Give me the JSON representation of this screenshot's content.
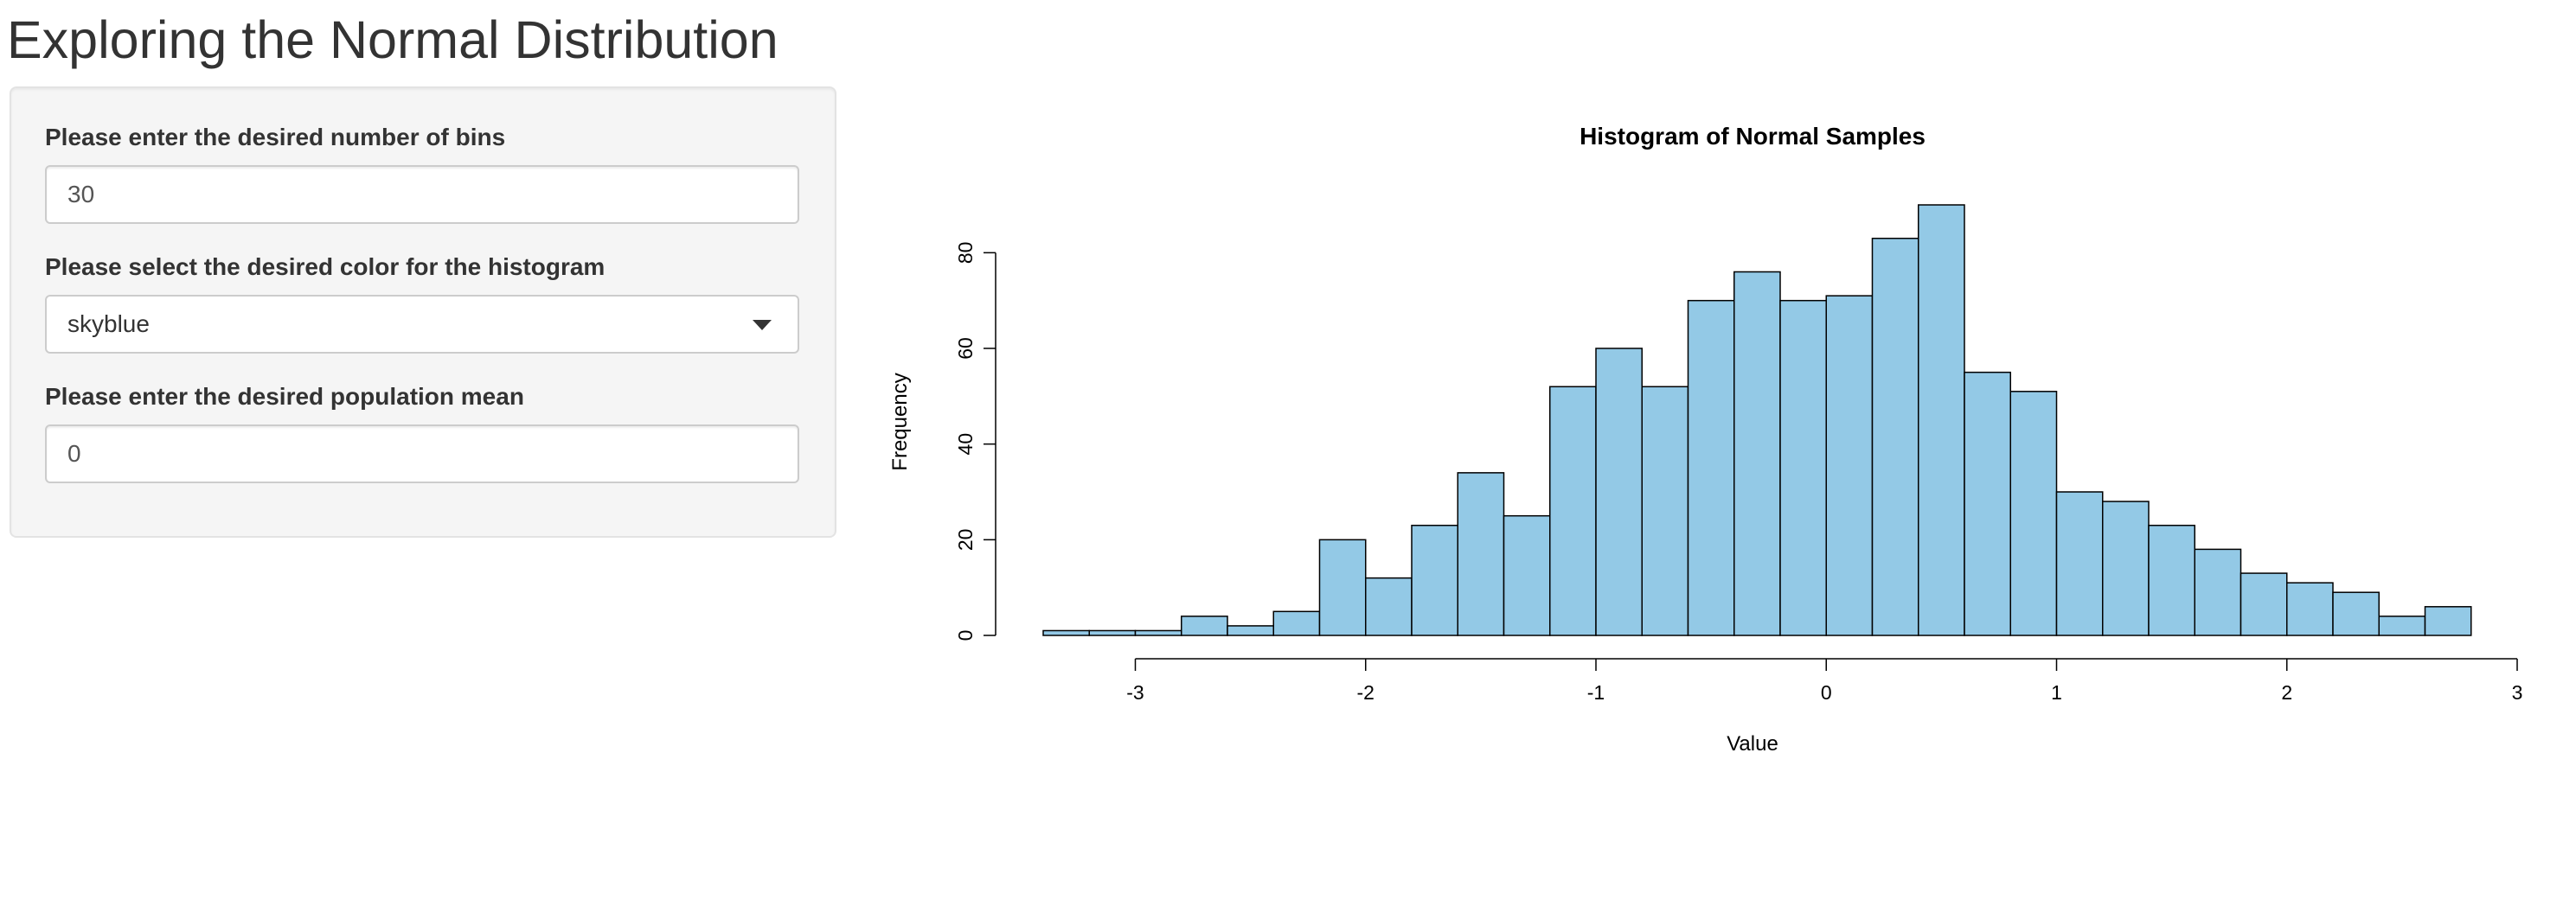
{
  "app": {
    "title": "Exploring the Normal Distribution"
  },
  "sidebar": {
    "bins": {
      "label": "Please enter the desired number of bins",
      "value": "30"
    },
    "color": {
      "label": "Please select the desired color for the histogram",
      "selected": "skyblue"
    },
    "mean": {
      "label": "Please enter the desired population mean",
      "value": "0"
    }
  },
  "colors": {
    "bar_fill": "#93c9e6",
    "bar_stroke": "#000000"
  },
  "chart_data": {
    "type": "bar",
    "title": "Histogram of Normal Samples",
    "xlabel": "Value",
    "ylabel": "Frequency",
    "bin_width": 0.2,
    "bin_starts": [
      -3.4,
      -3.2,
      -3.0,
      -2.8,
      -2.6,
      -2.4,
      -2.2,
      -2.0,
      -1.8,
      -1.6,
      -1.4,
      -1.2,
      -1.0,
      -0.8,
      -0.6,
      -0.4,
      -0.2,
      0.0,
      0.2,
      0.4,
      0.6,
      0.8,
      1.0,
      1.2,
      1.4,
      1.6,
      1.8,
      2.0,
      2.2,
      2.4,
      2.6
    ],
    "values": [
      1,
      1,
      1,
      4,
      2,
      5,
      20,
      12,
      23,
      34,
      25,
      52,
      60,
      52,
      70,
      76,
      70,
      71,
      83,
      90,
      55,
      51,
      30,
      28,
      23,
      18,
      13,
      11,
      9,
      4,
      6
    ],
    "xlim": [
      -3.4,
      3.0
    ],
    "ylim": [
      0,
      90
    ],
    "x_ticks": [
      -3,
      -2,
      -1,
      0,
      1,
      2,
      3
    ],
    "y_ticks": [
      0,
      20,
      40,
      60,
      80
    ],
    "grid": false,
    "legend": "none"
  }
}
